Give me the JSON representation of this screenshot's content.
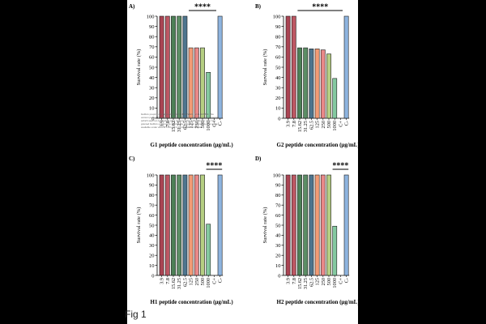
{
  "figure_caption": "Fig 1",
  "watermark_text": "bioRxiv preprint doi: https://doi.org/10.1101/2024.12.11.627894; this version posted December 11, 2024. The copyright holder for this preprint (which was not certified by peer review) is the author/funder, who has granted bioRxiv a license to display the preprint in perpetuity. It is made available under aCC-BY-NC-ND 4.0 International license.",
  "chart_data": [
    {
      "panel": "A)",
      "type": "bar",
      "categories": [
        "3.9",
        "7.8",
        "15.62",
        "31.25",
        "62.5",
        "125",
        "250",
        "500",
        "1000",
        "C+",
        "C-"
      ],
      "values": [
        100,
        100,
        100,
        100,
        100,
        69,
        69,
        69,
        45,
        0,
        100
      ],
      "xlabel": "G1 peptide concentration (μg/mL)",
      "ylabel": "Survival rate (%)",
      "ylim": [
        0,
        100
      ],
      "yticks": [
        "0",
        "10",
        "20",
        "30",
        "40",
        "50",
        "60",
        "70",
        "80",
        "90",
        "100"
      ],
      "significance": "****",
      "significance_span": [
        5,
        9
      ]
    },
    {
      "panel": "B)",
      "type": "bar",
      "categories": [
        "3.9",
        "7.8",
        "15.62",
        "31.25",
        "62.5",
        "125",
        "250",
        "500",
        "1000",
        "C+",
        "C-"
      ],
      "values": [
        100,
        100,
        69,
        69,
        68,
        68,
        67,
        63,
        39,
        0,
        100
      ],
      "xlabel": "G2 peptide concentration (μg/mL)",
      "ylabel": "Survival rate (%)",
      "ylim": [
        0,
        100
      ],
      "yticks": [
        "0",
        "10",
        "20",
        "30",
        "40",
        "50",
        "60",
        "70",
        "80",
        "90",
        "100"
      ],
      "significance": "****",
      "significance_span": [
        2,
        9
      ]
    },
    {
      "panel": "C)",
      "type": "bar",
      "categories": [
        "3.9",
        "7.8",
        "15.62",
        "31.25",
        "62.5",
        "125",
        "250",
        "500",
        "1000",
        "C+",
        "C-"
      ],
      "values": [
        100,
        100,
        100,
        100,
        100,
        100,
        100,
        100,
        51,
        0,
        100
      ],
      "xlabel": "H1 peptide concentration (μg/mL)",
      "ylabel": "Survival rate (%)",
      "ylim": [
        0,
        100
      ],
      "yticks": [
        "0",
        "10",
        "20",
        "30",
        "40",
        "50",
        "60",
        "70",
        "80",
        "90",
        "100"
      ],
      "significance": "****",
      "significance_span": [
        8,
        10
      ]
    },
    {
      "panel": "D)",
      "type": "bar",
      "categories": [
        "3.9",
        "7.8",
        "15.62",
        "31.25",
        "62.5",
        "125",
        "250",
        "500",
        "1000",
        "C+",
        "C-"
      ],
      "values": [
        100,
        100,
        100,
        100,
        100,
        100,
        100,
        100,
        49,
        0,
        100
      ],
      "xlabel": "H2 peptide concentration (μg/mL)",
      "ylabel": "Survival rate (%)",
      "ylim": [
        0,
        100
      ],
      "yticks": [
        "0",
        "10",
        "20",
        "30",
        "40",
        "50",
        "60",
        "70",
        "80",
        "90",
        "100"
      ],
      "significance": "****",
      "significance_span": [
        8,
        10
      ]
    }
  ],
  "bar_colors": [
    "#9b2335",
    "#b23a48",
    "#2e6b3a",
    "#3f7a4a",
    "#2f5d7a",
    "#f08a5d",
    "#e57373",
    "#a8c66c",
    "#6fbf8f",
    "#1f3a6b",
    "#7aa7d9"
  ]
}
